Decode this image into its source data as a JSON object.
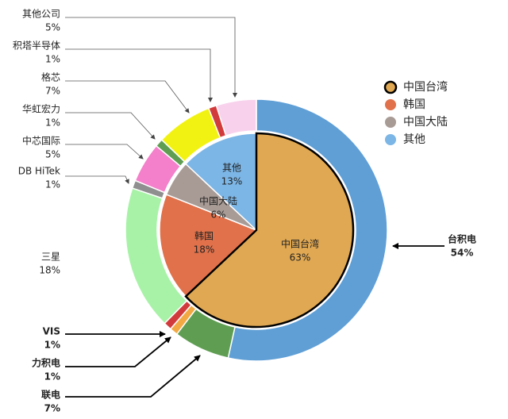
{
  "chart_data": {
    "type": "nested_pie",
    "inner": {
      "categories": [
        "中国台湾",
        "韩国",
        "中国大陆",
        "其他"
      ],
      "values": [
        63,
        18,
        6,
        13
      ],
      "value_labels": [
        "63%",
        "18%",
        "6%",
        "13%"
      ],
      "colors": [
        "#e0a852",
        "#e0714b",
        "#a89b95",
        "#7cb6e6"
      ]
    },
    "outer": {
      "categories": [
        "台积电",
        "联电",
        "力积电",
        "VIS",
        "三星",
        "DB HiTek",
        "中芯国际",
        "华虹宏力",
        "格芯",
        "积塔半导体",
        "其他公司"
      ],
      "values": [
        54,
        7,
        1,
        1,
        18,
        1,
        5,
        1,
        7,
        1,
        5
      ],
      "value_labels": [
        "54%",
        "7%",
        "1%",
        "1%",
        "18%",
        "1%",
        "5%",
        "1%",
        "7%",
        "1%",
        "5%"
      ],
      "colors": [
        "#5f9fd6",
        "#5f9e52",
        "#f2a944",
        "#d23b3b",
        "#a8f2a8",
        "#8f8f8f",
        "#f47fca",
        "#5f9e52",
        "#f2f212",
        "#d23b3b",
        "#f8d2ec"
      ]
    },
    "legend": "right"
  }
}
